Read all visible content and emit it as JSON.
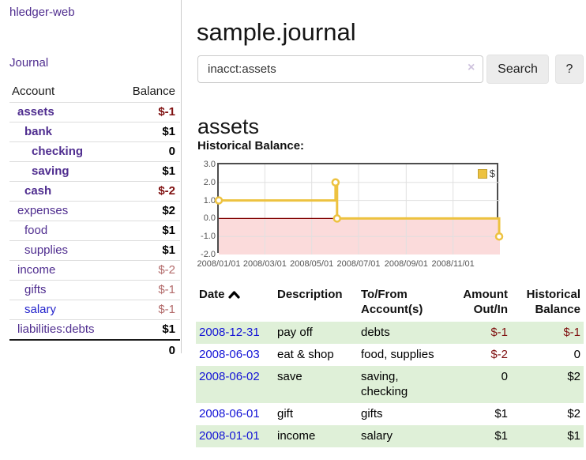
{
  "sidebar": {
    "brand": "hledger-web",
    "nav": {
      "journal": "Journal"
    },
    "accounts_header": {
      "account": "Account",
      "balance": "Balance"
    },
    "accounts": [
      {
        "name": "assets",
        "depth": 1,
        "bold": true,
        "balance": "$-1",
        "neg": "strong"
      },
      {
        "name": "bank",
        "depth": 2,
        "bold": true,
        "balance": "$1",
        "neg": "none"
      },
      {
        "name": "checking",
        "depth": 3,
        "bold": true,
        "balance": "0",
        "neg": "none"
      },
      {
        "name": "saving",
        "depth": 3,
        "bold": true,
        "balance": "$1",
        "neg": "none"
      },
      {
        "name": "cash",
        "depth": 2,
        "bold": true,
        "balance": "$-2",
        "neg": "strong"
      },
      {
        "name": "expenses",
        "depth": 1,
        "bold": false,
        "balance": "$2",
        "neg": "none"
      },
      {
        "name": "food",
        "depth": 2,
        "bold": false,
        "balance": "$1",
        "neg": "none"
      },
      {
        "name": "supplies",
        "depth": 2,
        "bold": false,
        "balance": "$1",
        "neg": "none"
      },
      {
        "name": "income",
        "depth": 1,
        "bold": false,
        "balance": "$-2",
        "neg": "soft"
      },
      {
        "name": "gifts",
        "depth": 2,
        "bold": false,
        "balance": "$-1",
        "neg": "soft"
      },
      {
        "name": "salary",
        "depth": 2,
        "bold": false,
        "balance": "$-1",
        "neg": "soft",
        "link_style": "blue"
      },
      {
        "name": "liabilities:debts",
        "depth": 1,
        "bold": false,
        "balance": "$1",
        "neg": "none"
      }
    ],
    "total": "0"
  },
  "header": {
    "title": "sample.journal"
  },
  "search": {
    "query": "inacct:assets",
    "clear_label": "×",
    "button": "Search",
    "help": "?"
  },
  "account_page": {
    "heading": "assets",
    "chart_label": "Historical Balance:"
  },
  "chart_data": {
    "type": "line",
    "step": true,
    "title": "Historical Balance",
    "legend": "$",
    "legend_position": "top-right",
    "grid": true,
    "series": [
      {
        "name": "$",
        "color": "#edc240",
        "points": [
          {
            "x": "2008-01-01",
            "y": 1
          },
          {
            "x": "2008-06-01",
            "y": 2
          },
          {
            "x": "2008-06-03",
            "y": 0
          },
          {
            "x": "2008-12-31",
            "y": -1
          }
        ]
      }
    ],
    "xlim": [
      "2008-01-01",
      "2009-01-01"
    ],
    "ylim": [
      -2,
      3
    ],
    "x_ticks": [
      {
        "x": "2008-01-01",
        "label": "2008/01/01"
      },
      {
        "x": "2008-03-01",
        "label": "2008/03/01"
      },
      {
        "x": "2008-05-01",
        "label": "2008/05/01"
      },
      {
        "x": "2008-07-01",
        "label": "2008/07/01"
      },
      {
        "x": "2008-09-01",
        "label": "2008/09/01"
      },
      {
        "x": "2008-11-01",
        "label": "2008/11/01"
      }
    ],
    "y_ticks": [
      {
        "v": 3,
        "label": "3.0"
      },
      {
        "v": 2,
        "label": "2.0"
      },
      {
        "v": 1,
        "label": "1.0"
      },
      {
        "v": 0,
        "label": "0.0"
      },
      {
        "v": -1,
        "label": "-1.0"
      },
      {
        "v": -2,
        "label": "-2.0"
      }
    ],
    "zero_line_color": "#800000",
    "below_zero_fill": "#fbdbdb",
    "grid_color": "#e0e0e0",
    "border_color": "#4d4d4d"
  },
  "register_table": {
    "columns": [
      {
        "lines": [
          "Date"
        ],
        "align": "left",
        "sorted": "asc"
      },
      {
        "lines": [
          "Description"
        ],
        "align": "left"
      },
      {
        "lines": [
          "To/From",
          "Account(s)"
        ],
        "align": "left"
      },
      {
        "lines": [
          "Amount",
          "Out/In"
        ],
        "align": "right"
      },
      {
        "lines": [
          "Historical",
          "Balance"
        ],
        "align": "right"
      }
    ],
    "rows": [
      {
        "date": "2008-12-31",
        "description": "pay off",
        "accounts": "debts",
        "amount": "$-1",
        "amount_neg": true,
        "balance": "$-1",
        "balance_neg": true
      },
      {
        "date": "2008-06-03",
        "description": "eat & shop",
        "accounts": "food, supplies",
        "amount": "$-2",
        "amount_neg": true,
        "balance": "0",
        "balance_neg": false
      },
      {
        "date": "2008-06-02",
        "description": "save",
        "accounts": "saving, checking",
        "amount": "0",
        "amount_neg": false,
        "balance": "$2",
        "balance_neg": false
      },
      {
        "date": "2008-06-01",
        "description": "gift",
        "accounts": "gifts",
        "amount": "$1",
        "amount_neg": false,
        "balance": "$2",
        "balance_neg": false
      },
      {
        "date": "2008-01-01",
        "description": "income",
        "accounts": "salary",
        "amount": "$1",
        "amount_neg": false,
        "balance": "$1",
        "balance_neg": false
      }
    ]
  },
  "colors": {
    "link_purple": "#4f2d8f",
    "link_blue": "#2323cc",
    "negative_strong": "#7f1010",
    "negative_soft": "#b36b6b",
    "row_green": "#dff0d8",
    "series_gold": "#edc240"
  }
}
